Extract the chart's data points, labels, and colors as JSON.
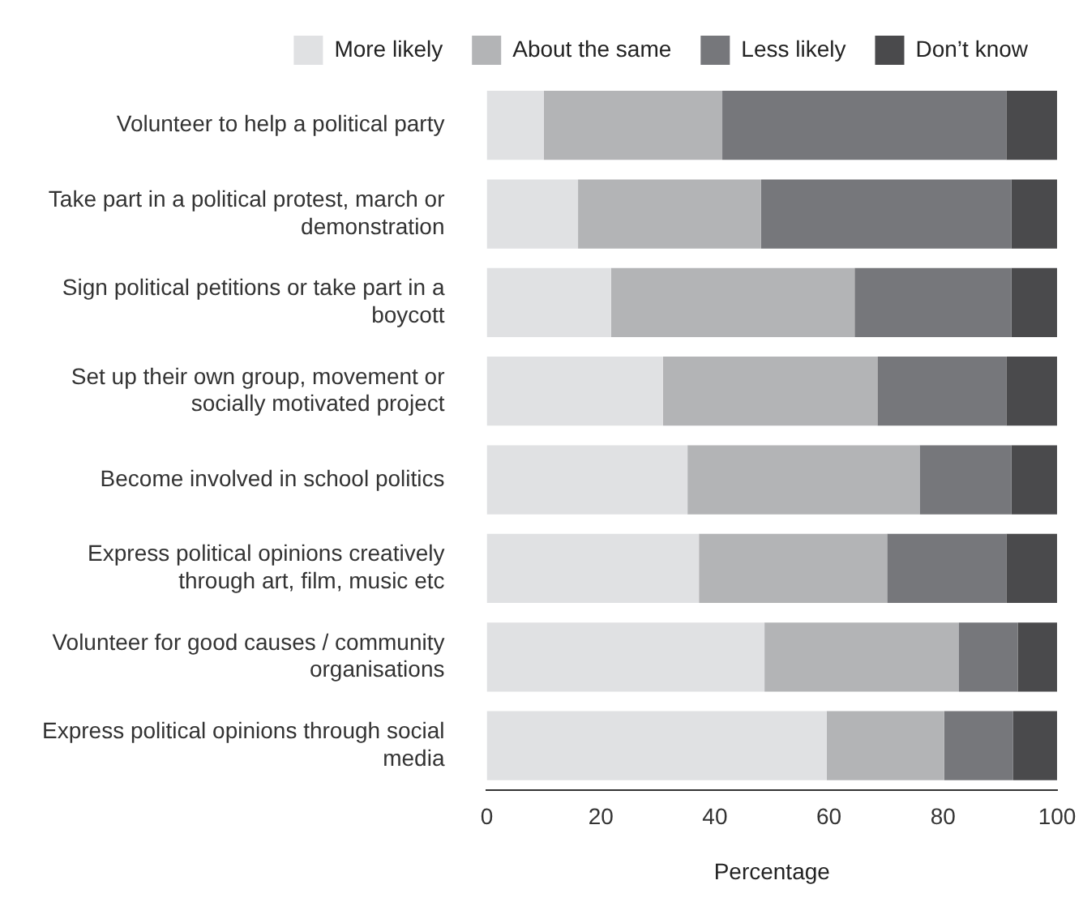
{
  "chart_data": {
    "type": "bar",
    "orientation": "horizontal",
    "stacked": true,
    "xlabel": "Percentage",
    "xlim": [
      0,
      100
    ],
    "xticks": [
      0,
      20,
      40,
      60,
      80,
      100
    ],
    "grid": false,
    "legend": "top",
    "categories": [
      "Volunteer to help a political party",
      "Take part in a political protest, march or demonstration",
      "Sign political petitions or take part in a boycott",
      "Set up their own group, movement or socially motivated project",
      "Become involved in school politics",
      "Express political opinions creatively through art, film, music etc",
      "Volunteer for good causes / community organisations",
      "Express political opinions through social media"
    ],
    "series": [
      {
        "name": "More likely",
        "color": "#e0e1e3",
        "values": [
          10.0,
          16.0,
          21.8,
          30.9,
          35.2,
          37.2,
          48.7,
          59.6
        ]
      },
      {
        "name": "About the same",
        "color": "#b3b4b6",
        "values": [
          31.3,
          32.1,
          42.7,
          37.6,
          40.7,
          33.0,
          34.1,
          20.6
        ]
      },
      {
        "name": "Less likely",
        "color": "#76777b",
        "values": [
          49.8,
          43.9,
          27.5,
          22.6,
          16.1,
          20.9,
          10.3,
          12.1
        ]
      },
      {
        "name": "Don’t know",
        "color": "#4a4a4c",
        "values": [
          8.9,
          8.0,
          8.0,
          8.9,
          8.0,
          8.9,
          6.9,
          7.7
        ]
      }
    ]
  }
}
